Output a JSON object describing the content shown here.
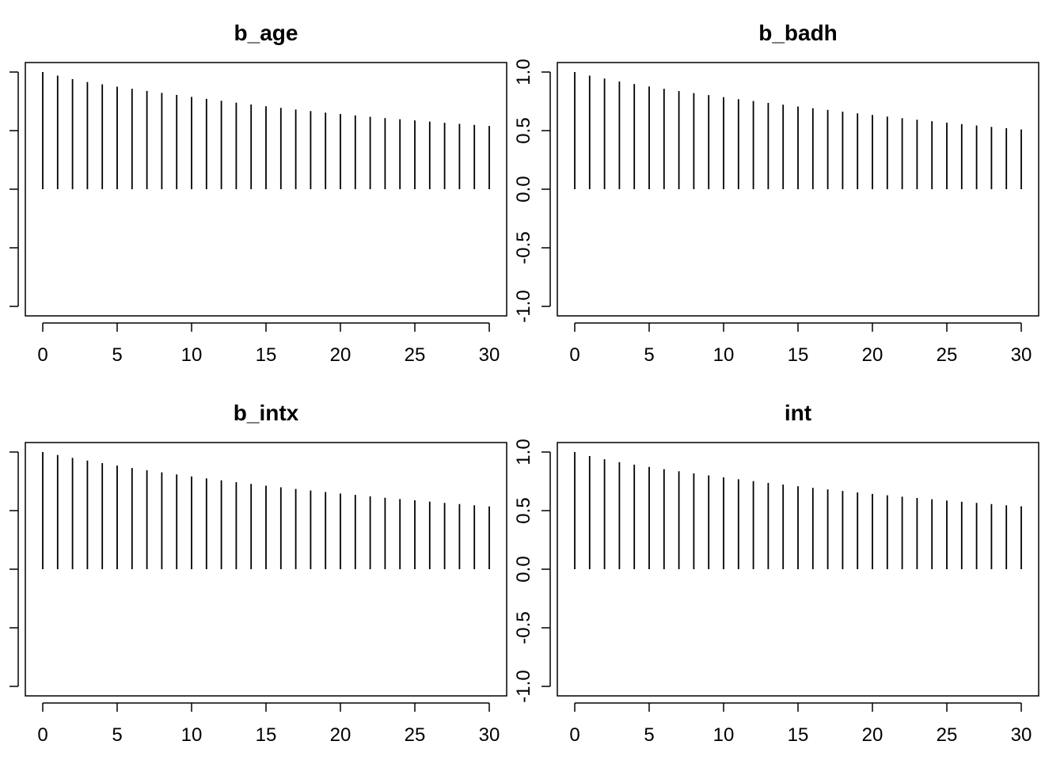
{
  "chart_data": [
    {
      "type": "bar",
      "title": "b_age",
      "xlabel": "",
      "ylabel": "",
      "x": [
        0,
        1,
        2,
        3,
        4,
        5,
        6,
        7,
        8,
        9,
        10,
        11,
        12,
        13,
        14,
        15,
        16,
        17,
        18,
        19,
        20,
        21,
        22,
        23,
        24,
        25,
        26,
        27,
        28,
        29,
        30
      ],
      "values": [
        1.0,
        0.97,
        0.94,
        0.915,
        0.895,
        0.875,
        0.857,
        0.839,
        0.822,
        0.805,
        0.788,
        0.771,
        0.755,
        0.739,
        0.723,
        0.708,
        0.694,
        0.68,
        0.667,
        0.654,
        0.642,
        0.63,
        0.618,
        0.607,
        0.597,
        0.587,
        0.577,
        0.567,
        0.558,
        0.549,
        0.54
      ],
      "xlim": [
        0,
        30
      ],
      "ylim": [
        -1.0,
        1.0
      ],
      "xticks": [
        0,
        5,
        10,
        15,
        20,
        25,
        30
      ],
      "yticks": [
        -1.0,
        -0.5,
        0.0,
        0.5,
        1.0
      ],
      "yaxis_side": "left",
      "ytick_labels_shown": false,
      "grid": false
    },
    {
      "type": "bar",
      "title": "b_badh",
      "xlabel": "",
      "ylabel": "",
      "x": [
        0,
        1,
        2,
        3,
        4,
        5,
        6,
        7,
        8,
        9,
        10,
        11,
        12,
        13,
        14,
        15,
        16,
        17,
        18,
        19,
        20,
        21,
        22,
        23,
        24,
        25,
        26,
        27,
        28,
        29,
        30
      ],
      "values": [
        1.0,
        0.97,
        0.944,
        0.92,
        0.898,
        0.877,
        0.857,
        0.838,
        0.82,
        0.803,
        0.786,
        0.769,
        0.753,
        0.737,
        0.721,
        0.706,
        0.691,
        0.677,
        0.662,
        0.648,
        0.634,
        0.62,
        0.606,
        0.593,
        0.58,
        0.568,
        0.556,
        0.544,
        0.532,
        0.521,
        0.51
      ],
      "xlim": [
        0,
        30
      ],
      "ylim": [
        -1.0,
        1.0
      ],
      "xticks": [
        0,
        5,
        10,
        15,
        20,
        25,
        30
      ],
      "yticks": [
        -1.0,
        -0.5,
        0.0,
        0.5,
        1.0
      ],
      "yaxis_side": "left",
      "ytick_labels_shown": true,
      "ytick_labels": [
        "-1.0",
        "-0.5",
        "0.0",
        "0.5",
        "1.0"
      ],
      "grid": false
    },
    {
      "type": "bar",
      "title": "b_intx",
      "xlabel": "",
      "ylabel": "",
      "x": [
        0,
        1,
        2,
        3,
        4,
        5,
        6,
        7,
        8,
        9,
        10,
        11,
        12,
        13,
        14,
        15,
        16,
        17,
        18,
        19,
        20,
        21,
        22,
        23,
        24,
        25,
        26,
        27,
        28,
        29,
        30
      ],
      "values": [
        1.0,
        0.975,
        0.95,
        0.927,
        0.905,
        0.884,
        0.864,
        0.845,
        0.827,
        0.809,
        0.792,
        0.775,
        0.759,
        0.743,
        0.728,
        0.713,
        0.699,
        0.685,
        0.672,
        0.659,
        0.646,
        0.634,
        0.622,
        0.61,
        0.599,
        0.588,
        0.577,
        0.566,
        0.556,
        0.546,
        0.536
      ],
      "xlim": [
        0,
        30
      ],
      "ylim": [
        -1.0,
        1.0
      ],
      "xticks": [
        0,
        5,
        10,
        15,
        20,
        25,
        30
      ],
      "yticks": [
        -1.0,
        -0.5,
        0.0,
        0.5,
        1.0
      ],
      "yaxis_side": "left",
      "ytick_labels_shown": false,
      "grid": false
    },
    {
      "type": "bar",
      "title": "int",
      "xlabel": "",
      "ylabel": "",
      "x": [
        0,
        1,
        2,
        3,
        4,
        5,
        6,
        7,
        8,
        9,
        10,
        11,
        12,
        13,
        14,
        15,
        16,
        17,
        18,
        19,
        20,
        21,
        22,
        23,
        24,
        25,
        26,
        27,
        28,
        29,
        30
      ],
      "values": [
        1.0,
        0.966,
        0.938,
        0.914,
        0.893,
        0.873,
        0.854,
        0.836,
        0.818,
        0.801,
        0.784,
        0.768,
        0.752,
        0.737,
        0.722,
        0.708,
        0.694,
        0.681,
        0.668,
        0.655,
        0.643,
        0.631,
        0.619,
        0.608,
        0.597,
        0.586,
        0.576,
        0.566,
        0.556,
        0.546,
        0.537
      ],
      "xlim": [
        0,
        30
      ],
      "ylim": [
        -1.0,
        1.0
      ],
      "xticks": [
        0,
        5,
        10,
        15,
        20,
        25,
        30
      ],
      "yticks": [
        -1.0,
        -0.5,
        0.0,
        0.5,
        1.0
      ],
      "yaxis_side": "left",
      "ytick_labels_shown": true,
      "ytick_labels": [
        "-1.0",
        "-0.5",
        "0.0",
        "0.5",
        "1.0"
      ],
      "grid": false
    }
  ]
}
